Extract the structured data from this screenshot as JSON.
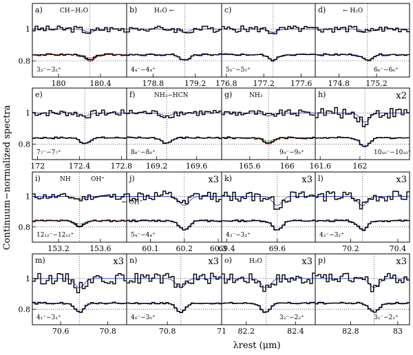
{
  "chart_data": {
    "type": "line",
    "xlabel": "λrest (μm)",
    "ylabel": "Continuum−normalized spectra",
    "yticks": [
      1,
      0.8
    ],
    "ylim": [
      0.7,
      1.16
    ],
    "colors": {
      "observed": "#000000",
      "model_total": "#d62020",
      "model_blue": "#2a3bd6",
      "model_green": "#1f9a1f",
      "model_orange": "#e08a2a"
    },
    "panels": [
      {
        "label": "a)",
        "row": 0,
        "col": 0,
        "transition": "3₃⁻−3₂⁺",
        "xticks": [
          180,
          180.4
        ],
        "xlim": [
          179.75,
          180.65
        ],
        "annotations": [
          "CH−H₂O"
        ],
        "scale": "",
        "line_center": 180.3
      },
      {
        "label": "b)",
        "row": 0,
        "col": 1,
        "transition": "4₄⁻−4₄⁺",
        "xticks": [
          178.8,
          179.2
        ],
        "xlim": [
          178.55,
          179.45
        ],
        "annotations": [
          "H₂O ←"
        ],
        "scale": "",
        "line_center": 179.1
      },
      {
        "label": "c)",
        "row": 0,
        "col": 2,
        "transition": "5₅⁻−5₅⁺",
        "xticks": [
          176.8,
          177.2,
          177.6
        ],
        "xlim": [
          176.75,
          177.75
        ],
        "annotations": [],
        "scale": "",
        "line_center": 177.3
      },
      {
        "label": "d)",
        "row": 0,
        "col": 3,
        "transition": "6₆⁻−6₆⁺",
        "xticks": [
          174.8,
          175.2
        ],
        "xlim": [
          174.55,
          175.55
        ],
        "annotations": [
          "← H₂O"
        ],
        "scale": "",
        "line_center": 175.1
      },
      {
        "label": "e)",
        "row": 1,
        "col": 0,
        "transition": "7₇⁻−7₇⁺",
        "xticks": [
          172,
          172.4,
          172.8
        ],
        "xlim": [
          171.95,
          172.85
        ],
        "annotations": [],
        "scale": "",
        "line_center": 172.45
      },
      {
        "label": "f)",
        "row": 1,
        "col": 1,
        "transition": "8₈⁻−8₈⁺",
        "xticks": [
          169.2,
          169.6
        ],
        "xlim": [
          168.9,
          169.85
        ],
        "annotations": [
          "NH₃−HCN"
        ],
        "scale": "",
        "line_center": 169.3
      },
      {
        "label": "g)",
        "row": 1,
        "col": 2,
        "transition": "9₉⁻−9₉⁺",
        "xticks": [
          165.6,
          166
        ],
        "xlim": [
          165.3,
          166.3
        ],
        "annotations": [
          "NH₃"
        ],
        "scale": "",
        "line_center": 165.8
      },
      {
        "label": "h)",
        "row": 1,
        "col": 3,
        "transition": "10₁₀⁻−10₁₀⁺",
        "xticks": [
          161.6,
          162
        ],
        "xlim": [
          161.55,
          162.5
        ],
        "annotations": [],
        "scale": "x2",
        "line_center": 162.05
      },
      {
        "label": "i)",
        "row": 2,
        "col": 0,
        "transition": "12₁₂⁻−12₁₂⁺",
        "xticks": [
          153.2,
          153.6
        ],
        "xlim": [
          152.95,
          153.85
        ],
        "annotations": [
          "NH",
          "OH⁺",
          "← OH⁺"
        ],
        "scale": "",
        "line_center": 153.4
      },
      {
        "label": "j)",
        "row": 2,
        "col": 1,
        "transition": "5₄⁻−4₄⁺",
        "xticks": [
          60.1,
          60.2,
          60.3
        ],
        "xlim": [
          60.03,
          60.31
        ],
        "annotations": [],
        "scale": "x3",
        "line_center": 60.2
      },
      {
        "label": "k)",
        "row": 2,
        "col": 2,
        "transition": "4₃⁻−3₃⁺",
        "xticks": [
          69.4,
          69.6
        ],
        "xlim": [
          69.38,
          69.75
        ],
        "annotations": [],
        "scale": "x3",
        "line_center": 69.6
      },
      {
        "label": "l)",
        "row": 2,
        "col": 3,
        "transition": "4₂⁻−3₂⁺",
        "xticks": [
          70.2,
          70.4
        ],
        "xlim": [
          70.05,
          70.45
        ],
        "annotations": [],
        "scale": "x3",
        "line_center": 70.25
      },
      {
        "label": "m)",
        "row": 3,
        "col": 0,
        "transition": "4₁⁻−3₁⁺",
        "xticks": [
          70.6,
          70.8
        ],
        "xlim": [
          70.48,
          70.88
        ],
        "annotations": [],
        "scale": "x3",
        "line_center": 70.68
      },
      {
        "label": "n)",
        "row": 3,
        "col": 1,
        "transition": "4₀⁻−3₀⁺",
        "xticks": [
          70.8,
          71
        ],
        "xlim": [
          70.65,
          71.0
        ],
        "annotations": [],
        "scale": "x3",
        "line_center": 70.85
      },
      {
        "label": "o)",
        "row": 3,
        "col": 2,
        "transition": "3₂⁻−2₂⁺",
        "xticks": [
          82.2,
          82.4
        ],
        "xlim": [
          82.1,
          82.48
        ],
        "annotations": [
          "H₂O"
        ],
        "scale": "x3",
        "line_center": 82.28
      },
      {
        "label": "p)",
        "row": 3,
        "col": 3,
        "transition": "3₁⁻−2₁⁺",
        "xticks": [
          82.8,
          83
        ],
        "xlim": [
          82.65,
          83.05
        ],
        "annotations": [],
        "scale": "x3",
        "line_center": 82.9
      }
    ]
  }
}
